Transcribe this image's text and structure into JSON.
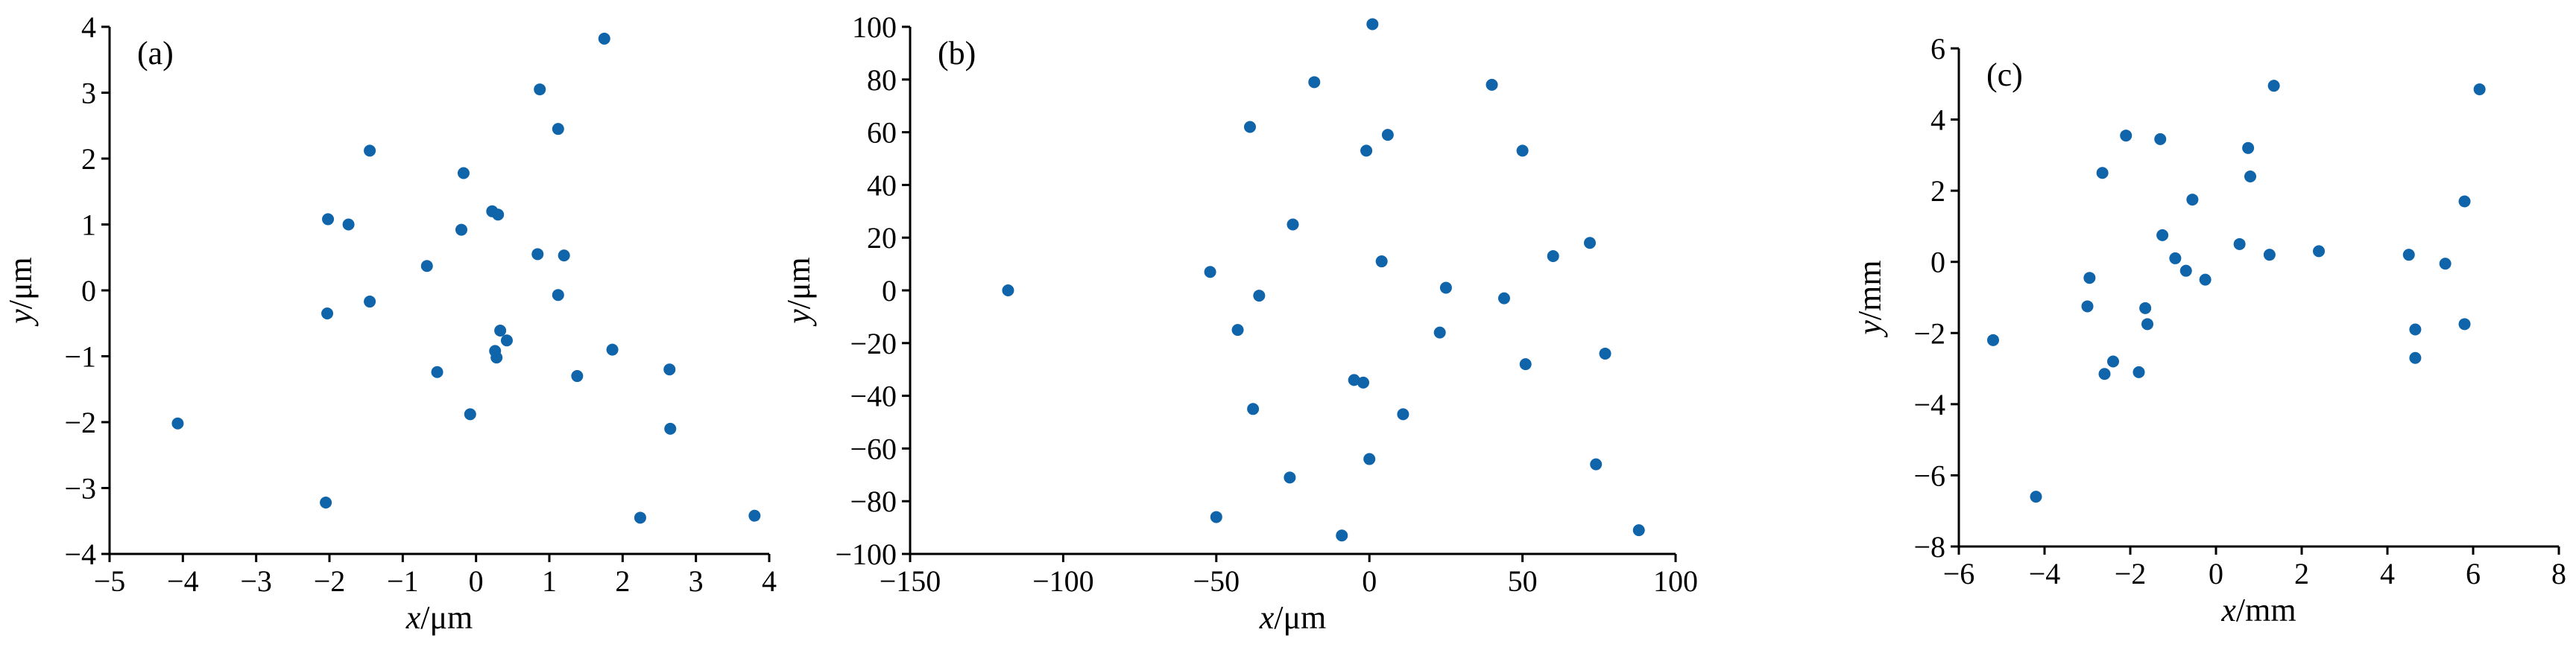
{
  "figure": {
    "marker_color": "#0F64AA"
  },
  "chart_data": [
    {
      "type": "scatter",
      "panel_tag": "(a)",
      "xlabel": {
        "var": "x",
        "unit": "/μm"
      },
      "ylabel": {
        "var": "y",
        "unit": "/μm"
      },
      "xlim": [
        -5,
        4
      ],
      "ylim": [
        -4,
        4
      ],
      "xticks": [
        -5,
        -4,
        -3,
        -2,
        -1,
        0,
        1,
        2,
        3,
        4
      ],
      "yticks": [
        -4,
        -3,
        -2,
        -1,
        0,
        1,
        2,
        3,
        4
      ],
      "grid": false,
      "points": [
        [
          -4.07,
          -2.02
        ],
        [
          -2.05,
          -3.22
        ],
        [
          -2.02,
          1.08
        ],
        [
          -2.03,
          -0.35
        ],
        [
          -1.74,
          1.0
        ],
        [
          -1.45,
          2.12
        ],
        [
          -1.45,
          -0.17
        ],
        [
          -0.67,
          0.37
        ],
        [
          -0.53,
          -1.24
        ],
        [
          -0.2,
          0.92
        ],
        [
          -0.17,
          1.78
        ],
        [
          -0.08,
          -1.88
        ],
        [
          0.22,
          1.2
        ],
        [
          0.3,
          1.15
        ],
        [
          0.26,
          -0.92
        ],
        [
          0.28,
          -1.02
        ],
        [
          0.33,
          -0.61
        ],
        [
          0.42,
          -0.76
        ],
        [
          0.84,
          0.55
        ],
        [
          0.87,
          3.05
        ],
        [
          1.12,
          2.45
        ],
        [
          1.12,
          -0.07
        ],
        [
          1.2,
          0.53
        ],
        [
          1.38,
          -1.3
        ],
        [
          1.75,
          3.82
        ],
        [
          1.86,
          -0.9
        ],
        [
          2.24,
          -3.45
        ],
        [
          2.64,
          -1.2
        ],
        [
          2.65,
          -2.1
        ],
        [
          3.8,
          -3.42
        ]
      ]
    },
    {
      "type": "scatter",
      "panel_tag": "(b)",
      "xlabel": {
        "var": "x",
        "unit": "/μm"
      },
      "ylabel": {
        "var": "y",
        "unit": "/μm"
      },
      "xlim": [
        -150,
        100
      ],
      "ylim": [
        -100,
        100
      ],
      "xticks": [
        -150,
        -100,
        -50,
        0,
        50,
        100
      ],
      "yticks": [
        -100,
        -80,
        -60,
        -40,
        -20,
        0,
        20,
        40,
        60,
        80,
        100
      ],
      "grid": false,
      "points": [
        [
          -118,
          0
        ],
        [
          -52,
          7
        ],
        [
          -50,
          -86
        ],
        [
          -43,
          -15
        ],
        [
          -39,
          62
        ],
        [
          -38,
          -45
        ],
        [
          -36,
          -2
        ],
        [
          -26,
          -71
        ],
        [
          -25,
          25
        ],
        [
          -18,
          79
        ],
        [
          -9,
          -93
        ],
        [
          -5,
          -34
        ],
        [
          -2,
          -35
        ],
        [
          -1,
          53
        ],
        [
          0,
          -64
        ],
        [
          1,
          101
        ],
        [
          4,
          11
        ],
        [
          6,
          59
        ],
        [
          11,
          -47
        ],
        [
          23,
          -16
        ],
        [
          25,
          1
        ],
        [
          40,
          78
        ],
        [
          44,
          -3
        ],
        [
          50,
          53
        ],
        [
          51,
          -28
        ],
        [
          60,
          13
        ],
        [
          72,
          18
        ],
        [
          74,
          -66
        ],
        [
          77,
          -24
        ],
        [
          88,
          -91
        ]
      ]
    },
    {
      "type": "scatter",
      "panel_tag": "(c)",
      "xlabel": {
        "var": "x",
        "unit": "/mm"
      },
      "ylabel": {
        "var": "y",
        "unit": "/mm"
      },
      "xlim": [
        -6,
        8
      ],
      "ylim": [
        -8,
        6
      ],
      "xticks": [
        -6,
        -4,
        -2,
        0,
        2,
        4,
        6,
        8
      ],
      "yticks": [
        -8,
        -6,
        -4,
        -2,
        0,
        2,
        4,
        6
      ],
      "grid": false,
      "points": [
        [
          -5.2,
          -2.2
        ],
        [
          -4.2,
          -6.6
        ],
        [
          -3.0,
          -1.25
        ],
        [
          -2.95,
          -0.45
        ],
        [
          -2.65,
          2.5
        ],
        [
          -2.6,
          -3.15
        ],
        [
          -2.4,
          -2.8
        ],
        [
          -2.1,
          3.55
        ],
        [
          -1.8,
          -3.1
        ],
        [
          -1.65,
          -1.3
        ],
        [
          -1.6,
          -1.75
        ],
        [
          -1.3,
          3.45
        ],
        [
          -1.25,
          0.75
        ],
        [
          -0.95,
          0.1
        ],
        [
          -0.7,
          -0.25
        ],
        [
          -0.55,
          1.75
        ],
        [
          -0.25,
          -0.5
        ],
        [
          0.55,
          0.5
        ],
        [
          0.75,
          3.2
        ],
        [
          0.8,
          2.4
        ],
        [
          1.25,
          0.2
        ],
        [
          1.35,
          4.95
        ],
        [
          2.4,
          0.3
        ],
        [
          4.5,
          0.2
        ],
        [
          4.65,
          -1.9
        ],
        [
          4.65,
          -2.7
        ],
        [
          5.35,
          -0.05
        ],
        [
          5.8,
          -1.75
        ],
        [
          5.8,
          1.7
        ],
        [
          6.15,
          4.85
        ]
      ]
    }
  ]
}
